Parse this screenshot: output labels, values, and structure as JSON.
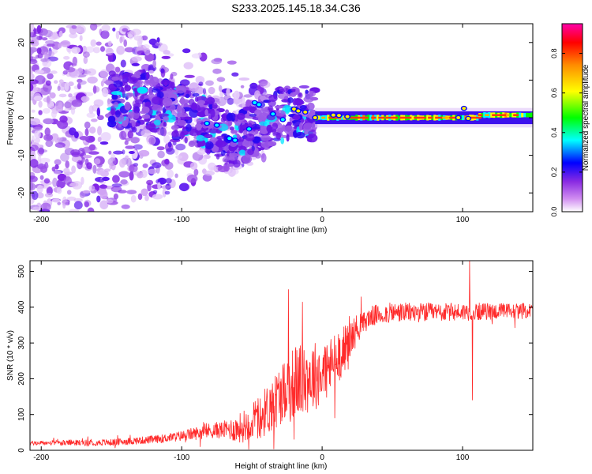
{
  "title": "S233.2025.145.18.34.C36",
  "chart_data": [
    {
      "type": "heatmap",
      "name": "spectrogram",
      "xlabel": "Height of straight line (km)",
      "ylabel": "Frequency (Hz)",
      "xlim": [
        -208,
        150
      ],
      "ylim": [
        -25,
        25
      ],
      "xticks": [
        -200,
        -100,
        0,
        100
      ],
      "yticks": [
        -20,
        -10,
        0,
        10,
        20
      ],
      "colorbar": {
        "label": "Normalized spectral amplitude",
        "range": [
          0.0,
          0.95
        ],
        "ticks": [
          0.0,
          0.2,
          0.4,
          0.6,
          0.8
        ],
        "tick_labels": [
          "0.0",
          "0.2",
          "0.4",
          "0.6",
          "0.8"
        ],
        "colors": [
          "#ffffff",
          "#8a2be2",
          "#0000ff",
          "#00ffff",
          "#00ff00",
          "#ffff00",
          "#ff8c00",
          "#ff0000",
          "#ff00aa"
        ]
      },
      "ridge": [
        {
          "x": -130,
          "y": 5
        },
        {
          "x": -100,
          "y": 1
        },
        {
          "x": -80,
          "y": -2
        },
        {
          "x": -65,
          "y": -6
        },
        {
          "x": -45,
          "y": -3
        },
        {
          "x": -35,
          "y": 0
        },
        {
          "x": -20,
          "y": 2
        },
        {
          "x": -5,
          "y": 0.5
        },
        {
          "x": 0,
          "y": 0
        },
        {
          "x": 50,
          "y": 0
        },
        {
          "x": 100,
          "y": 0
        },
        {
          "x": 150,
          "y": 1
        }
      ],
      "noise_region_x": [
        -208,
        -60
      ],
      "carrier_x": [
        -5,
        150
      ],
      "carrier_freq": 0
    },
    {
      "type": "line",
      "name": "snr",
      "xlabel": "Height of straight line (km)",
      "ylabel": "SNR (10 * v/v)",
      "xlim": [
        -208,
        150
      ],
      "ylim": [
        0,
        530
      ],
      "xticks": [
        -200,
        -100,
        0,
        100
      ],
      "yticks": [
        0,
        100,
        200,
        300,
        400,
        500
      ],
      "color": "#ff2a2a",
      "envelope": [
        {
          "x": -208,
          "y": 20
        },
        {
          "x": -150,
          "y": 22
        },
        {
          "x": -120,
          "y": 30
        },
        {
          "x": -100,
          "y": 40
        },
        {
          "x": -80,
          "y": 55
        },
        {
          "x": -60,
          "y": 60
        },
        {
          "x": -45,
          "y": 90
        },
        {
          "x": -35,
          "y": 130
        },
        {
          "x": -25,
          "y": 180
        },
        {
          "x": -15,
          "y": 200
        },
        {
          "x": -5,
          "y": 210
        },
        {
          "x": 5,
          "y": 230
        },
        {
          "x": 15,
          "y": 280
        },
        {
          "x": 25,
          "y": 340
        },
        {
          "x": 35,
          "y": 375
        },
        {
          "x": 50,
          "y": 385
        },
        {
          "x": 80,
          "y": 385
        },
        {
          "x": 100,
          "y": 387
        },
        {
          "x": 150,
          "y": 390
        }
      ],
      "noise_amplitude": [
        {
          "x": -208,
          "y": 6
        },
        {
          "x": -110,
          "y": 12
        },
        {
          "x": -70,
          "y": 25
        },
        {
          "x": -40,
          "y": 70
        },
        {
          "x": -15,
          "y": 110
        },
        {
          "x": 10,
          "y": 80
        },
        {
          "x": 30,
          "y": 30
        },
        {
          "x": 150,
          "y": 22
        }
      ],
      "spikes": [
        {
          "x": -24,
          "y": 450
        },
        {
          "x": -20,
          "y": 30
        },
        {
          "x": -14,
          "y": 415
        },
        {
          "x": 9,
          "y": 90
        },
        {
          "x": 105,
          "y": 530
        },
        {
          "x": 107,
          "y": 140
        }
      ]
    }
  ]
}
